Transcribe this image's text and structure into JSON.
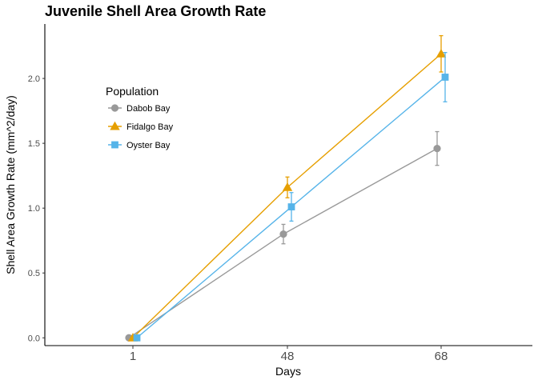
{
  "chart_data": {
    "type": "line",
    "title": "Juvenile Shell Area Growth Rate",
    "xlabel": "Days",
    "ylabel": "Shell Area Growth Rate (mm^2/day)",
    "categories": [
      "1",
      "48",
      "68"
    ],
    "ylim": [
      -0.06,
      2.42
    ],
    "yticks": [
      0.0,
      0.5,
      1.0,
      1.5,
      2.0
    ],
    "ytick_labels": [
      "0.0",
      "0.5",
      "1.0",
      "1.5",
      "2.0"
    ],
    "grid": false,
    "legend": {
      "title": "Population",
      "position": "top-left"
    },
    "series": [
      {
        "name": "Dabob Bay",
        "color": "#999999",
        "marker": "circle",
        "values": [
          0.0,
          0.8,
          1.46
        ],
        "errors": [
          0.0,
          0.075,
          0.13
        ]
      },
      {
        "name": "Fidalgo Bay",
        "color": "#E69F00",
        "marker": "triangle",
        "values": [
          0.0,
          1.16,
          2.19
        ],
        "errors": [
          0.0,
          0.08,
          0.14
        ]
      },
      {
        "name": "Oyster Bay",
        "color": "#56B4E9",
        "marker": "square",
        "values": [
          0.0,
          1.01,
          2.01
        ],
        "errors": [
          0.0,
          0.11,
          0.19
        ]
      }
    ]
  }
}
